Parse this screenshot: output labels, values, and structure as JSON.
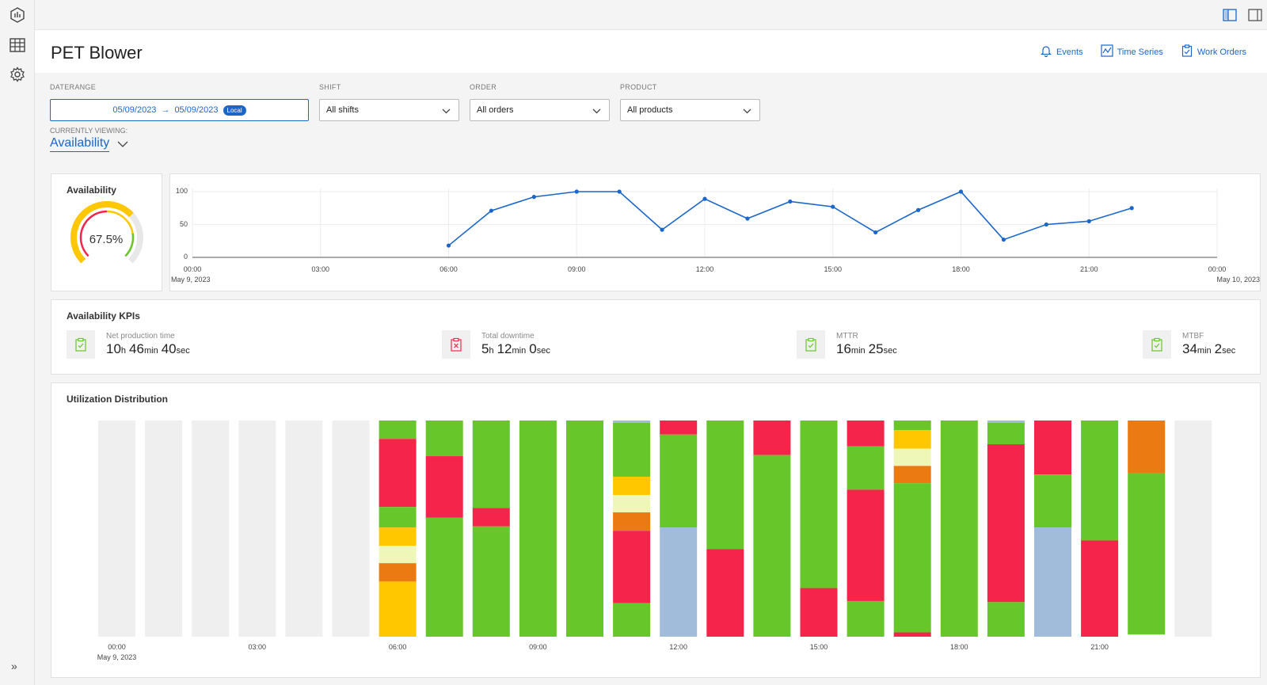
{
  "rail": {
    "icons": [
      "analytics-hex-icon",
      "table-grid-icon",
      "settings-gear-icon"
    ],
    "expand_label": "»"
  },
  "header": {
    "title": "PET Blower",
    "links": [
      {
        "label": "Events",
        "icon": "bell-icon"
      },
      {
        "label": "Time Series",
        "icon": "chart-line-icon"
      },
      {
        "label": "Work Orders",
        "icon": "clipboard-icon"
      }
    ]
  },
  "filters": {
    "daterange_label": "DATERANGE",
    "date_from": "05/09/2023",
    "date_to": "05/09/2023",
    "local_badge": "Local",
    "shift_label": "SHIFT",
    "shift_value": "All shifts",
    "order_label": "ORDER",
    "order_value": "All orders",
    "product_label": "PRODUCT",
    "product_value": "All products",
    "viewing_label": "CURRENTLY VIEWING:",
    "viewing_value": "Availability"
  },
  "availability_card": {
    "title": "Availability",
    "value_text": "67.5%",
    "value": 67.5
  },
  "colors": {
    "accent": "#1a66c9",
    "green": "#66c62a",
    "red": "#f4244a",
    "yellow": "#ffc700",
    "pale": "#eef7b8",
    "orange": "#ec7a12",
    "blue_grey": "#a1bcda",
    "empty": "#efefef"
  },
  "chart_data": [
    {
      "type": "line",
      "title": "",
      "x_ticks": [
        "00:00",
        "03:00",
        "06:00",
        "09:00",
        "12:00",
        "15:00",
        "18:00",
        "21:00",
        "00:00"
      ],
      "x_start_label": "May 9, 2023",
      "x_end_label": "May 10, 2023",
      "y_ticks": [
        "100",
        "50",
        "0"
      ],
      "ylim": [
        0,
        100
      ],
      "x_hours": [
        6,
        7,
        8,
        9,
        10,
        11,
        12,
        13,
        14,
        15,
        16,
        17,
        18,
        19,
        20,
        21,
        22
      ],
      "values": [
        18,
        71,
        92,
        100,
        100,
        42,
        89,
        59,
        85,
        77,
        38,
        72,
        100,
        27,
        50,
        55,
        75
      ]
    },
    {
      "type": "bar",
      "title": "Utilization Distribution",
      "x_ticks": [
        "00:00",
        "03:00",
        "06:00",
        "09:00",
        "12:00",
        "15:00",
        "18:00",
        "21:00"
      ],
      "x_start_label": "May 9, 2023",
      "stacked": true,
      "hours": [
        "00",
        "01",
        "02",
        "03",
        "04",
        "05",
        "06",
        "07",
        "08",
        "09",
        "10",
        "11",
        "12",
        "13",
        "14",
        "15",
        "16",
        "17",
        "18",
        "19",
        "20",
        "21",
        "22",
        "23"
      ],
      "segments_top_to_bottom": [
        [],
        [],
        [],
        [],
        [],
        [],
        [
          [
            "green",
            0.085
          ],
          [
            "red",
            0.315
          ],
          [
            "green",
            0.095
          ],
          [
            "yellow",
            0.085
          ],
          [
            "pale",
            0.08
          ],
          [
            "orange",
            0.085
          ],
          [
            "yellow",
            0.255
          ]
        ],
        [
          [
            "green",
            0.165
          ],
          [
            "red",
            0.285
          ],
          [
            "green",
            0.55
          ]
        ],
        [
          [
            "green",
            0.405
          ],
          [
            "red",
            0.085
          ],
          [
            "green",
            0.51
          ]
        ],
        [
          [
            "green",
            1.0
          ]
        ],
        [
          [
            "green",
            1.0
          ]
        ],
        [
          [
            "blue_grey",
            0.01
          ],
          [
            "green",
            0.25
          ],
          [
            "yellow",
            0.085
          ],
          [
            "pale",
            0.08
          ],
          [
            "orange",
            0.085
          ],
          [
            "red",
            0.335
          ],
          [
            "green",
            0.155
          ]
        ],
        [
          [
            "red",
            0.065
          ],
          [
            "green",
            0.43
          ],
          [
            "blue_grey",
            0.505
          ]
        ],
        [
          [
            "green",
            0.595
          ],
          [
            "red",
            0.405
          ]
        ],
        [
          [
            "red",
            0.16
          ],
          [
            "green",
            0.84
          ]
        ],
        [
          [
            "green",
            0.775
          ],
          [
            "red",
            0.225
          ]
        ],
        [
          [
            "red",
            0.12
          ],
          [
            "green",
            0.2
          ],
          [
            "green",
            0.0
          ],
          [
            "red",
            0.515
          ],
          [
            "green",
            0.165
          ]
        ],
        [
          [
            "green",
            0.045
          ],
          [
            "yellow",
            0.085
          ],
          [
            "pale",
            0.08
          ],
          [
            "orange",
            0.08
          ],
          [
            "green",
            0.69
          ],
          [
            "red",
            0.02
          ]
        ],
        [
          [
            "green",
            1.0
          ]
        ],
        [
          [
            "blue_grey",
            0.01
          ],
          [
            "green",
            0.1
          ],
          [
            "red",
            0.73
          ],
          [
            "green",
            0.16
          ]
        ],
        [
          [
            "red",
            0.25
          ],
          [
            "green",
            0.245
          ],
          [
            "blue_grey",
            0.505
          ]
        ],
        [
          [
            "green",
            0.555
          ],
          [
            "red",
            0.445
          ]
        ],
        [
          [
            "orange",
            0.245
          ],
          [
            "green",
            0.745
          ]
        ],
        []
      ]
    }
  ],
  "kpis": {
    "title": "Availability KPIs",
    "items": [
      {
        "label": "Net production time",
        "icon": "clipboard-check-icon",
        "parts": [
          [
            "10",
            "h"
          ],
          [
            "46",
            "min"
          ],
          [
            "40",
            "sec"
          ]
        ]
      },
      {
        "label": "Total downtime",
        "icon": "clipboard-x-icon",
        "parts": [
          [
            "5",
            "h"
          ],
          [
            "12",
            "min"
          ],
          [
            "0",
            "sec"
          ]
        ]
      },
      {
        "label": "MTTR",
        "icon": "clipboard-check-icon",
        "parts": [
          [
            "16",
            "min"
          ],
          [
            "25",
            "sec"
          ]
        ]
      },
      {
        "label": "MTBF",
        "icon": "clipboard-check-icon",
        "parts": [
          [
            "34",
            "min"
          ],
          [
            "2",
            "sec"
          ]
        ]
      }
    ]
  },
  "utilization": {
    "title": "Utilization Distribution"
  }
}
